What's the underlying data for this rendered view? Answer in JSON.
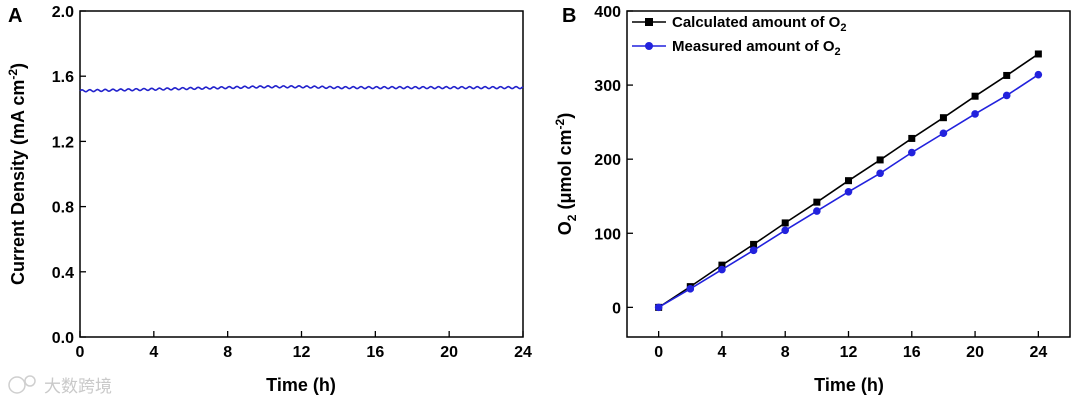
{
  "chart_data": [
    {
      "panel": "A",
      "type": "line",
      "xlabel": "Time (h)",
      "ylabel_main": "Current Density (mA cm",
      "ylabel_sup": "-2",
      "ylabel_end": ")",
      "xlim": [
        0,
        24
      ],
      "ylim": [
        0.0,
        2.0
      ],
      "xticks": [
        "0",
        "4",
        "8",
        "12",
        "16",
        "20",
        "24"
      ],
      "yticks": [
        "0.0",
        "0.4",
        "0.8",
        "1.2",
        "1.6",
        "2.0"
      ],
      "series_color": "#2222cc",
      "x": [
        0,
        2,
        4,
        6,
        8,
        10,
        12,
        14,
        16,
        18,
        20,
        22,
        24
      ],
      "y": [
        1.51,
        1.515,
        1.52,
        1.525,
        1.53,
        1.535,
        1.535,
        1.53,
        1.53,
        1.53,
        1.53,
        1.53,
        1.53
      ]
    },
    {
      "panel": "B",
      "type": "line",
      "xlabel": "Time (h)",
      "ylabel_pre": "O",
      "ylabel_sub": "2",
      "ylabel_mid": " (μmol cm",
      "ylabel_sup": "-2",
      "ylabel_end": ")",
      "xlim": [
        -2,
        26
      ],
      "ylim": [
        -40,
        400
      ],
      "xticks": [
        "0",
        "4",
        "8",
        "12",
        "16",
        "20",
        "24"
      ],
      "yticks": [
        "0",
        "100",
        "200",
        "300",
        "400"
      ],
      "x": [
        0,
        2,
        4,
        6,
        8,
        10,
        12,
        14,
        16,
        18,
        20,
        22,
        24
      ],
      "series": [
        {
          "legend_main": "Calculated amount of O",
          "legend_sub": "2",
          "color": "#000000",
          "marker": "square",
          "values": [
            0,
            28,
            57,
            85,
            114,
            142,
            171,
            199,
            228,
            256,
            285,
            313,
            342
          ]
        },
        {
          "legend_main": "Measured amount of O",
          "legend_sub": "2",
          "color": "#2222dd",
          "marker": "circle",
          "values": [
            0,
            25,
            51,
            77,
            104,
            130,
            156,
            181,
            209,
            235,
            261,
            286,
            314
          ]
        }
      ]
    }
  ],
  "watermark": "大数跨境"
}
